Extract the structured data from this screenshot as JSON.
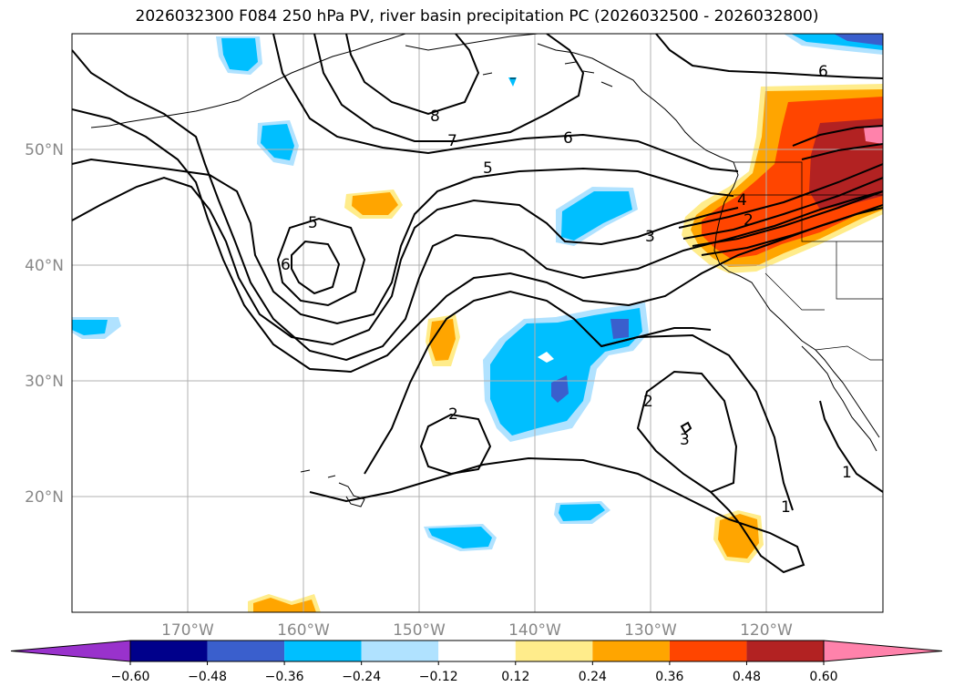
{
  "title": "2026032300 F084 250 hPa PV, river basin precipitation PC (2026032500 - 2026032800)",
  "lon_labels": [
    "170°W",
    "160°W",
    "150°W",
    "140°W",
    "130°W",
    "120°W"
  ],
  "lat_labels": [
    "50°N",
    "40°N",
    "30°N",
    "20°N"
  ],
  "colorbar": {
    "labels": [
      "−0.60",
      "−0.48",
      "−0.36",
      "−0.24",
      "−0.12",
      "0.12",
      "0.24",
      "0.36",
      "0.48",
      "0.60"
    ],
    "colors": [
      "#9932cc",
      "#00008b",
      "#3a5fcd",
      "#00bfff",
      "#b0e2ff",
      "#ffffff",
      "#ffec8b",
      "#ffa500",
      "#ff4500",
      "#b22222",
      "#ff82ab"
    ]
  },
  "contour_labels": [
    "8",
    "7",
    "6",
    "6",
    "5",
    "5",
    "6",
    "4",
    "2",
    "3",
    "2",
    "2",
    "3",
    "1",
    "1"
  ],
  "chart_data": {
    "type": "heatmap",
    "title": "2026032300 F084 250 hPa PV, river basin precipitation PC (2026032500 - 2026032800)",
    "extent": {
      "lon": [
        -180,
        -110
      ],
      "lat": [
        10,
        60
      ]
    },
    "fields": [
      {
        "quantity": "250 hPa PV",
        "style": "black contours",
        "levels": [
          1,
          2,
          3,
          4,
          5,
          6,
          7,
          8
        ]
      },
      {
        "quantity": "river basin precipitation PC",
        "style": "filled colors",
        "levels": [
          -0.6,
          -0.48,
          -0.36,
          -0.24,
          -0.12,
          0.12,
          0.24,
          0.36,
          0.48,
          0.6
        ]
      }
    ]
  }
}
